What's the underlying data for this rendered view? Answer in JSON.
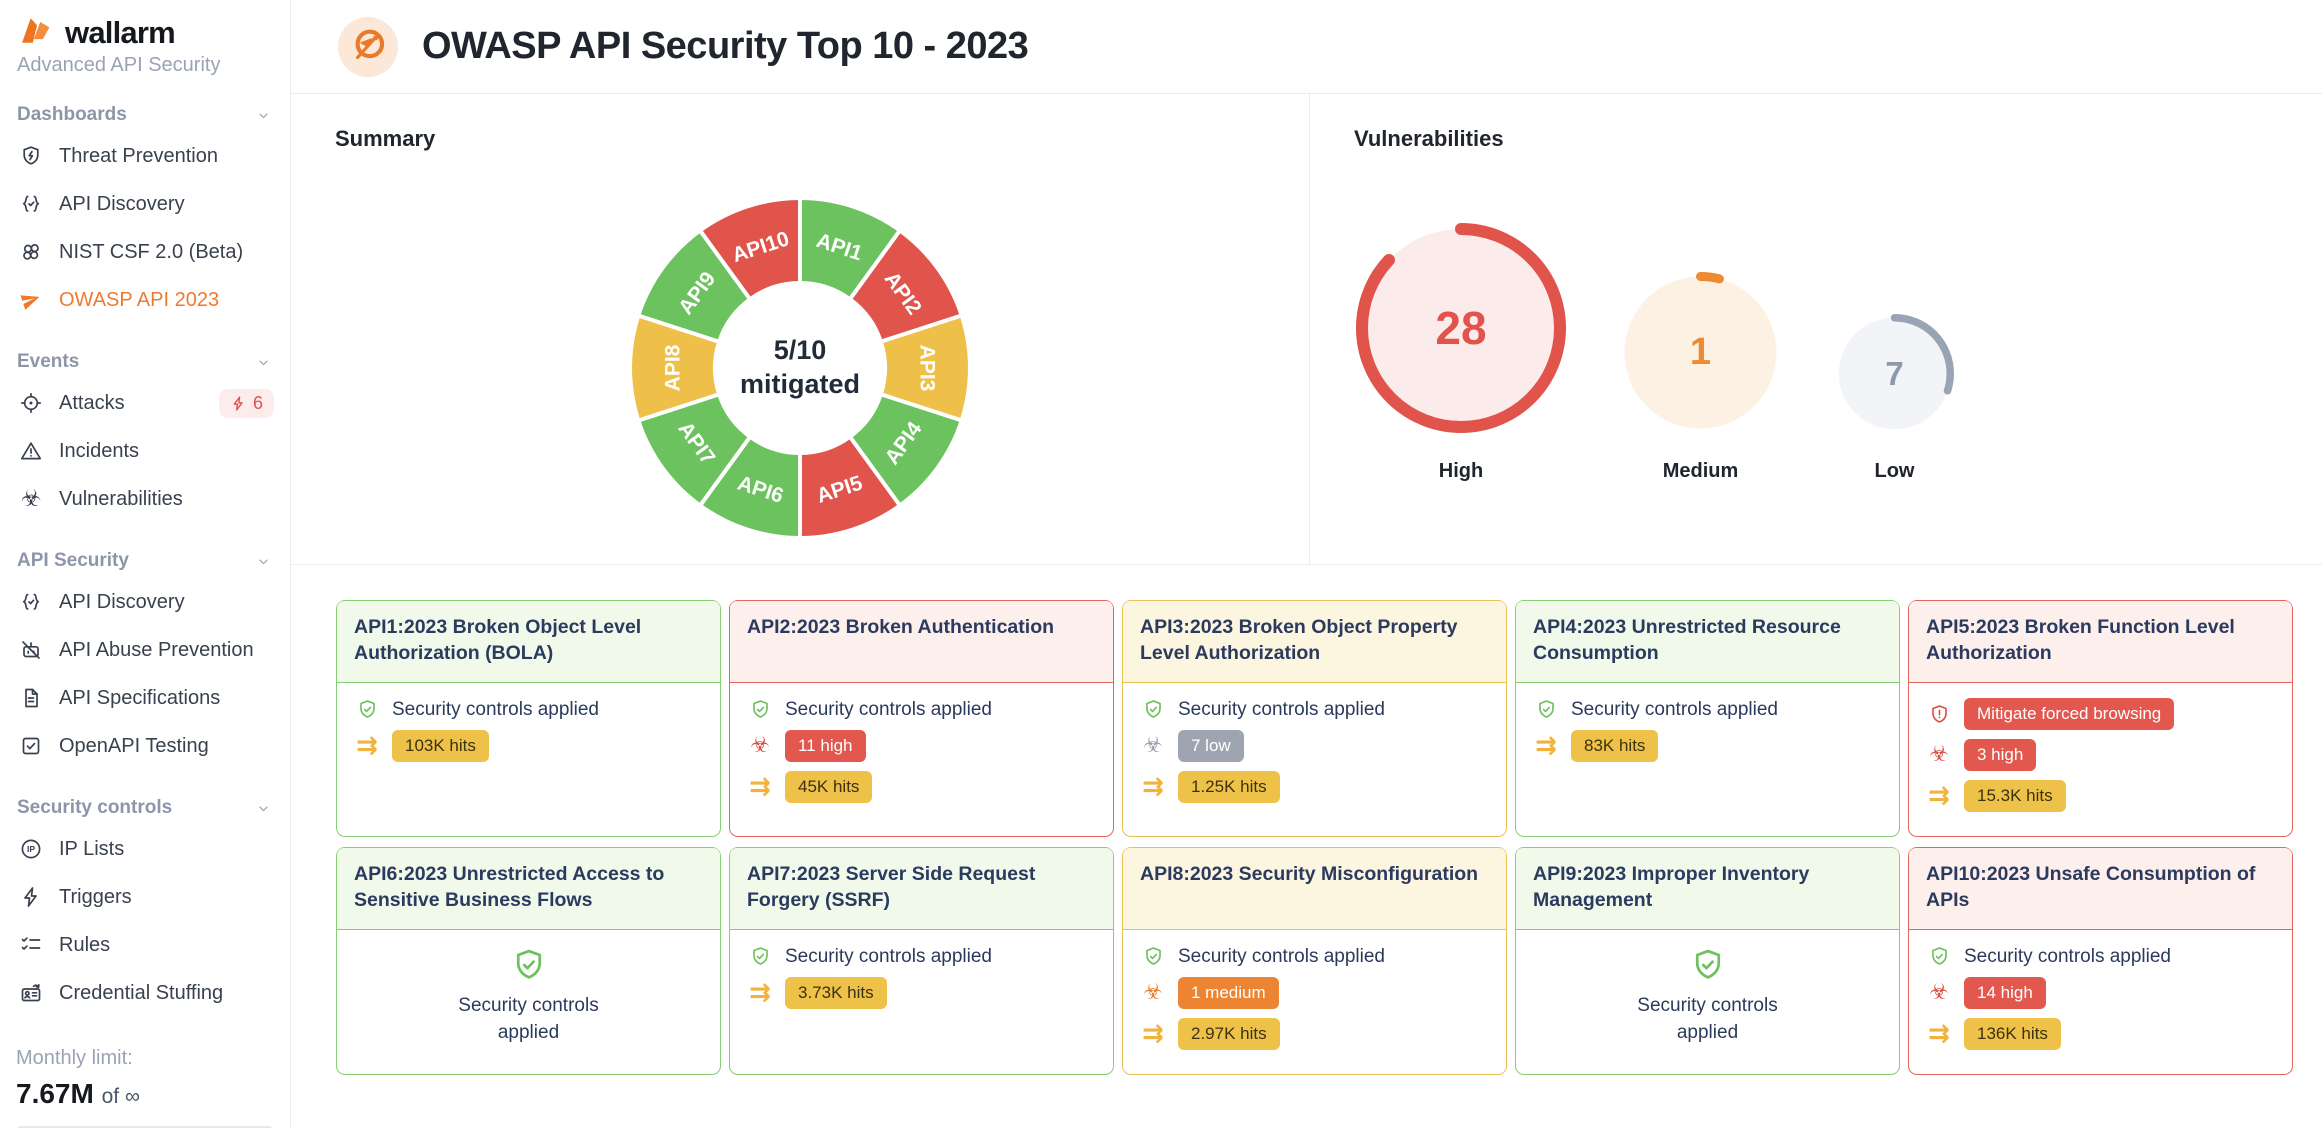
{
  "brand": {
    "name": "wallarm",
    "subtitle": "Advanced API Security"
  },
  "header": {
    "title": "OWASP API Security Top 10 - 2023",
    "icon": "owasp-wasp-icon"
  },
  "sidebar": {
    "sections": [
      {
        "label": "Dashboards",
        "items": [
          {
            "label": "Threat Prevention",
            "icon": "shield-bolt"
          },
          {
            "label": "API Discovery",
            "icon": "braces-check"
          },
          {
            "label": "NIST CSF 2.0 (Beta)",
            "icon": "four-circles"
          },
          {
            "label": "OWASP API 2023",
            "icon": "paper-plane",
            "active": true
          }
        ]
      },
      {
        "label": "Events",
        "items": [
          {
            "label": "Attacks",
            "icon": "crosshair",
            "badge": "6"
          },
          {
            "label": "Incidents",
            "icon": "warning-triangle"
          },
          {
            "label": "Vulnerabilities",
            "icon": "biohazard"
          }
        ]
      },
      {
        "label": "API Security",
        "items": [
          {
            "label": "API Discovery",
            "icon": "braces-check"
          },
          {
            "label": "API Abuse Prevention",
            "icon": "bot-off"
          },
          {
            "label": "API Specifications",
            "icon": "document"
          },
          {
            "label": "OpenAPI Testing",
            "icon": "checkbox"
          }
        ]
      },
      {
        "label": "Security controls",
        "items": [
          {
            "label": "IP Lists",
            "icon": "ip-circle"
          },
          {
            "label": "Triggers",
            "icon": "bolt"
          },
          {
            "label": "Rules",
            "icon": "checklist"
          },
          {
            "label": "Credential Stuffing",
            "icon": "id-card"
          }
        ]
      }
    ],
    "monthly_limit": {
      "label": "Monthly limit:",
      "value": "7.67M",
      "suffix": "of ∞"
    }
  },
  "summary": {
    "title": "Summary",
    "center": {
      "top": "5/10",
      "bottom": "mitigated"
    }
  },
  "vulnerabilities": {
    "title": "Vulnerabilities"
  },
  "chart_data": [
    {
      "type": "pie",
      "title": "Summary",
      "subtype": "donut",
      "categories": [
        "API1",
        "API2",
        "API3",
        "API4",
        "API5",
        "API6",
        "API7",
        "API8",
        "API9",
        "API10"
      ],
      "values": [
        1,
        1,
        1,
        1,
        1,
        1,
        1,
        1,
        1,
        1
      ],
      "statuses": [
        "mitigated",
        "high",
        "low",
        "mitigated",
        "high",
        "mitigated",
        "mitigated",
        "medium",
        "mitigated",
        "high"
      ],
      "colors": [
        "#6cc25e",
        "#e0544b",
        "#eec04a",
        "#6cc25e",
        "#e0544b",
        "#6cc25e",
        "#6cc25e",
        "#eec04a",
        "#6cc25e",
        "#e0544b"
      ],
      "center_label": "5/10 mitigated",
      "legend": "none",
      "labels_inside": true
    },
    {
      "type": "gauge",
      "title": "Vulnerabilities",
      "categories": [
        "High",
        "Medium",
        "Low"
      ],
      "values": [
        28,
        1,
        7
      ],
      "arc_fractions": [
        0.87,
        0.04,
        0.3
      ],
      "ring_colors": [
        "#e0544b",
        "#ee8a2f",
        "#98a3b4"
      ],
      "fill_colors": [
        "#fbebea",
        "#fdf1e4",
        "#f2f4f8"
      ],
      "number_colors": [
        "#e0544b",
        "#ee8a2f",
        "#8e99ab"
      ]
    }
  ],
  "cards": [
    {
      "id": "api1",
      "status": "green",
      "layout": "rows",
      "title": "API1:2023 Broken Object Level Authorization (BOLA)",
      "rows": [
        {
          "icon": "shield-check",
          "icon_color": "green",
          "text": "Security controls applied"
        },
        {
          "icon": "arrows",
          "icon_color": "amber",
          "badge": "103K hits",
          "badge_color": "yellow"
        }
      ]
    },
    {
      "id": "api2",
      "status": "red",
      "layout": "rows",
      "title": "API2:2023 Broken Authentication",
      "rows": [
        {
          "icon": "shield-check",
          "icon_color": "green",
          "text": "Security controls applied"
        },
        {
          "icon": "biohazard",
          "icon_color": "red",
          "badge": "11 high",
          "badge_color": "red"
        },
        {
          "icon": "arrows",
          "icon_color": "amber",
          "badge": "45K hits",
          "badge_color": "yellow"
        }
      ]
    },
    {
      "id": "api3",
      "status": "yellow",
      "layout": "rows",
      "title": "API3:2023 Broken Object Property Level Authorization",
      "rows": [
        {
          "icon": "shield-check",
          "icon_color": "green",
          "text": "Security controls applied"
        },
        {
          "icon": "biohazard",
          "icon_color": "gray",
          "badge": "7 low",
          "badge_color": "gray"
        },
        {
          "icon": "arrows",
          "icon_color": "amber",
          "badge": "1.25K hits",
          "badge_color": "yellow"
        }
      ]
    },
    {
      "id": "api4",
      "status": "green",
      "layout": "rows",
      "title": "API4:2023 Unrestricted Resource Consumption",
      "rows": [
        {
          "icon": "shield-check",
          "icon_color": "green",
          "text": "Security controls applied"
        },
        {
          "icon": "arrows",
          "icon_color": "amber",
          "badge": "83K hits",
          "badge_color": "yellow"
        }
      ]
    },
    {
      "id": "api5",
      "status": "red",
      "layout": "rows",
      "title": "API5:2023 Broken Function Level Authorization",
      "rows": [
        {
          "icon": "shield-alert",
          "icon_color": "red",
          "badge": "Mitigate forced browsing",
          "badge_color": "red"
        },
        {
          "icon": "biohazard",
          "icon_color": "red",
          "badge": "3 high",
          "badge_color": "red"
        },
        {
          "icon": "arrows",
          "icon_color": "amber",
          "badge": "15.3K hits",
          "badge_color": "yellow"
        }
      ]
    },
    {
      "id": "api6",
      "status": "green",
      "layout": "centered",
      "title": "API6:2023 Unrestricted Access to Sensitive Business Flows",
      "rows": [
        {
          "icon": "shield-check",
          "icon_color": "green",
          "text": "Security controls applied"
        }
      ]
    },
    {
      "id": "api7",
      "status": "green",
      "layout": "rows",
      "title": "API7:2023 Server Side Request Forgery (SSRF)",
      "rows": [
        {
          "icon": "shield-check",
          "icon_color": "green",
          "text": "Security controls applied"
        },
        {
          "icon": "arrows",
          "icon_color": "amber",
          "badge": "3.73K hits",
          "badge_color": "yellow"
        }
      ]
    },
    {
      "id": "api8",
      "status": "yellow",
      "layout": "rows",
      "title": "API8:2023 Security Misconfiguration",
      "rows": [
        {
          "icon": "shield-check",
          "icon_color": "green",
          "text": "Security controls applied"
        },
        {
          "icon": "biohazard",
          "icon_color": "orange",
          "badge": "1 medium",
          "badge_color": "orange"
        },
        {
          "icon": "arrows",
          "icon_color": "amber",
          "badge": "2.97K hits",
          "badge_color": "yellow"
        }
      ]
    },
    {
      "id": "api9",
      "status": "green",
      "layout": "centered",
      "title": "API9:2023 Improper Inventory Management",
      "rows": [
        {
          "icon": "shield-check",
          "icon_color": "green",
          "text": "Security controls applied"
        }
      ]
    },
    {
      "id": "api10",
      "status": "red",
      "layout": "rows",
      "title": "API10:2023 Unsafe Consumption of APIs",
      "rows": [
        {
          "icon": "shield-check",
          "icon_color": "green",
          "text": "Security controls applied"
        },
        {
          "icon": "biohazard",
          "icon_color": "red",
          "badge": "14 high",
          "badge_color": "red"
        },
        {
          "icon": "arrows",
          "icon_color": "amber",
          "badge": "136K hits",
          "badge_color": "yellow"
        }
      ]
    }
  ],
  "colors": {
    "accent_orange": "#ee7a2e",
    "brand_orange": "#f0731f",
    "divider": "#e9ebef",
    "navy_text": "#2b3a5f",
    "card_styles": {
      "green": {
        "border": "#87cd74",
        "bg": "#f0f9ea"
      },
      "red": {
        "border": "#e3655d",
        "bg": "#fdefec"
      },
      "yellow": {
        "border": "#eac052",
        "bg": "#fcf5df"
      }
    },
    "badge_colors": {
      "yellow": {
        "bg": "#eec148",
        "text": "#3c3110"
      },
      "red": {
        "bg": "#e2574e",
        "text": "#ffffff"
      },
      "orange": {
        "bg": "#ec8433",
        "text": "#ffffff"
      },
      "gray": {
        "bg": "#9ea5b1",
        "text": "#ffffff"
      }
    },
    "icon_colors": {
      "green": "#6ec05c",
      "red": "#da5148",
      "gray": "#9aa0ad",
      "orange": "#e8802f",
      "amber": "#f2b33d"
    },
    "attacks_badge": {
      "bg": "#fdecec",
      "text": "#e05252"
    }
  }
}
